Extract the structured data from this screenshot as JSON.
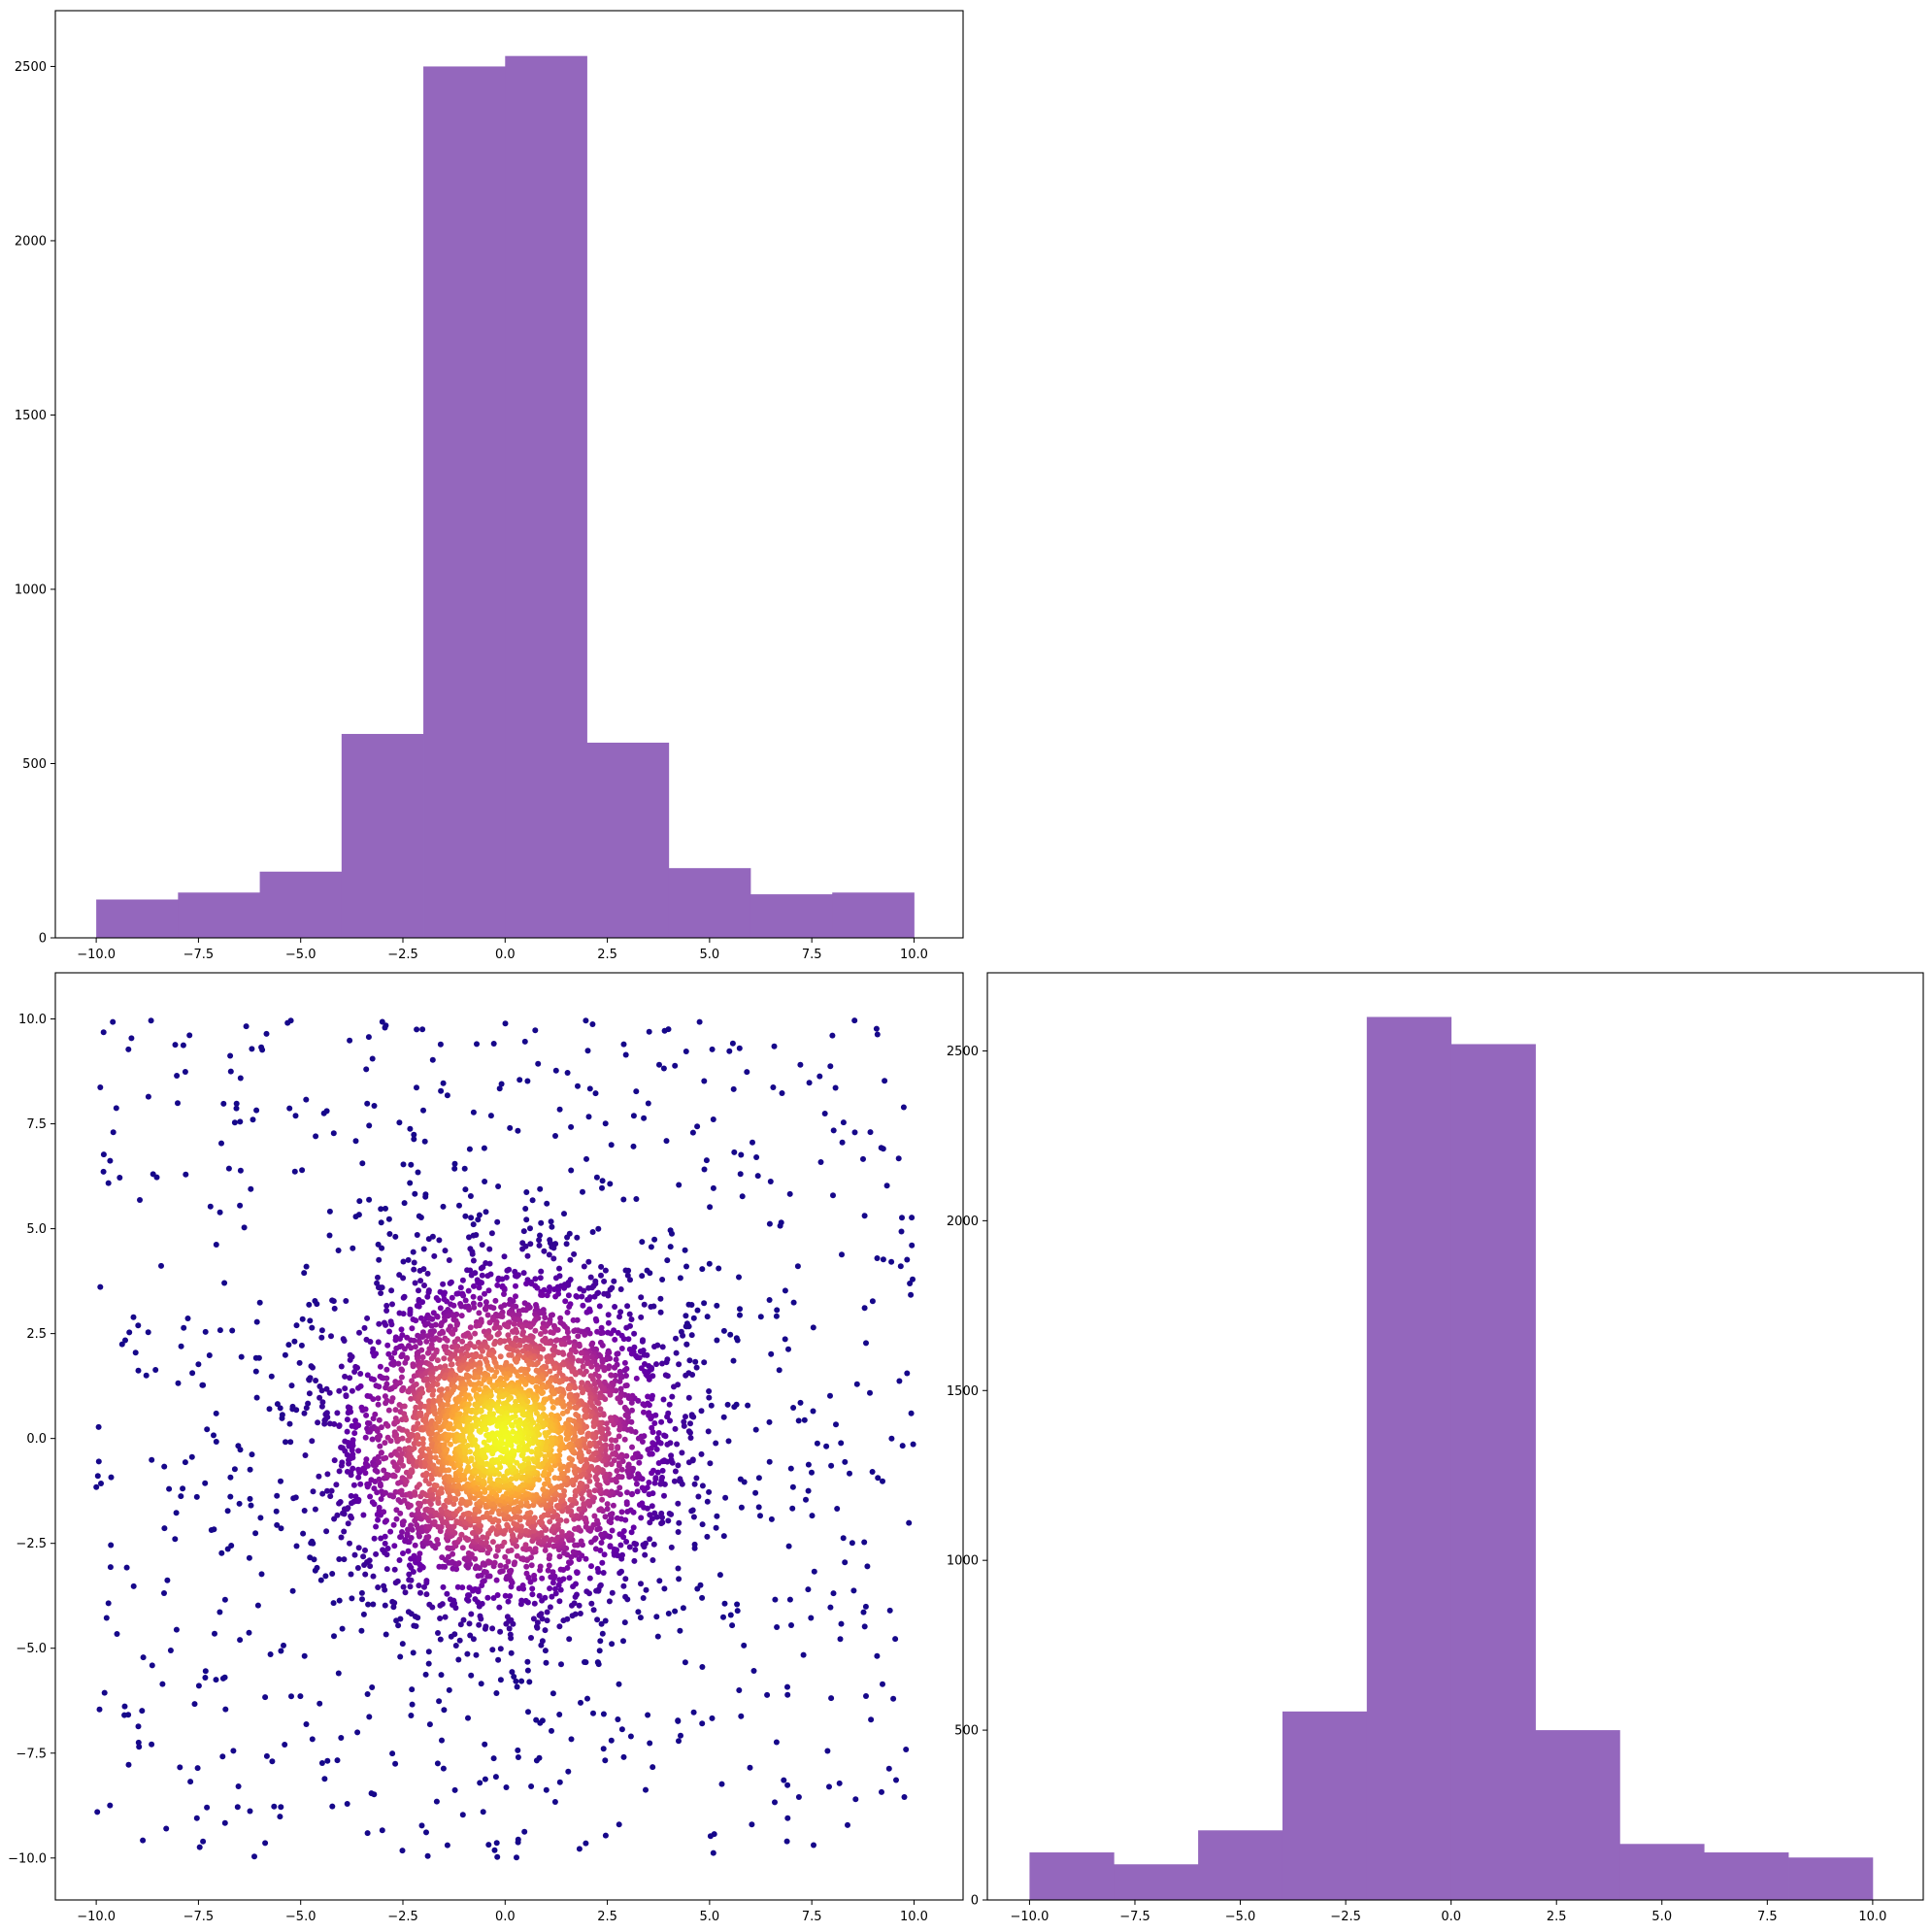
{
  "colors": {
    "bar": "#9467bd",
    "axis": "#000000",
    "scatter_colormap": "plasma",
    "scatter_colormap_stops": [
      "#0d0887",
      "#6a00a8",
      "#b12a90",
      "#e16462",
      "#fca636",
      "#f0f921"
    ]
  },
  "chart_data": [
    {
      "id": "hist-x",
      "type": "bar",
      "title": "",
      "xlabel": "",
      "ylabel": "",
      "bin_edges": [
        -10,
        -8,
        -6,
        -4,
        -2,
        0,
        2,
        4,
        6,
        8,
        10
      ],
      "values": [
        110,
        130,
        190,
        585,
        2500,
        2530,
        560,
        200,
        125,
        130
      ],
      "xlim": [
        -11,
        11.2
      ],
      "ylim": [
        0,
        2660
      ],
      "xticks": [
        -10,
        -7.5,
        -5,
        -2.5,
        0,
        2.5,
        5,
        7.5,
        10
      ],
      "xtick_labels": [
        "−10.0",
        "−7.5",
        "−5.0",
        "−2.5",
        "0.0",
        "2.5",
        "5.0",
        "7.5",
        "10.0"
      ],
      "yticks": [
        0,
        500,
        1000,
        1500,
        2000,
        2500
      ],
      "ytick_labels": [
        "0",
        "500",
        "1000",
        "1500",
        "2000",
        "2500"
      ],
      "grid": false
    },
    {
      "id": "scatter-xy",
      "type": "scatter",
      "title": "",
      "xlabel": "",
      "ylabel": "",
      "description": "≈5000 points: a Gaussian cluster centred at (0, 0) (sd ≈ 2) plus a uniform background over [-10, 10] × [-10, 10]; points coloured by local density with the plasma colormap (dark purple sparse → yellow dense).",
      "n_points": 5000,
      "center": [
        0,
        0
      ],
      "cluster_sd": 2,
      "uniform_range": [
        -10,
        10
      ],
      "xlim": [
        -11,
        11.2
      ],
      "ylim": [
        -11,
        11.1
      ],
      "xticks": [
        -10,
        -7.5,
        -5,
        -2.5,
        0,
        2.5,
        5,
        7.5,
        10
      ],
      "xtick_labels": [
        "−10.0",
        "−7.5",
        "−5.0",
        "−2.5",
        "0.0",
        "2.5",
        "5.0",
        "7.5",
        "10.0"
      ],
      "yticks": [
        -10,
        -7.5,
        -5,
        -2.5,
        0,
        2.5,
        5,
        7.5,
        10
      ],
      "ytick_labels": [
        "−10.0",
        "−7.5",
        "−5.0",
        "−2.5",
        "0.0",
        "2.5",
        "5.0",
        "7.5",
        "10.0"
      ],
      "grid": false
    },
    {
      "id": "hist-y",
      "type": "bar",
      "title": "",
      "xlabel": "",
      "ylabel": "",
      "bin_edges": [
        -10,
        -8,
        -6,
        -4,
        -2,
        0,
        2,
        4,
        6,
        8,
        10
      ],
      "values": [
        140,
        105,
        205,
        555,
        2600,
        2520,
        500,
        165,
        140,
        125
      ],
      "xlim": [
        -11,
        11.2
      ],
      "ylim": [
        0,
        2730
      ],
      "xticks": [
        -10,
        -7.5,
        -5,
        -2.5,
        0,
        2.5,
        5,
        7.5,
        10
      ],
      "xtick_labels": [
        "−10.0",
        "−7.5",
        "−5.0",
        "−2.5",
        "0.0",
        "2.5",
        "5.0",
        "7.5",
        "10.0"
      ],
      "yticks": [
        0,
        500,
        1000,
        1500,
        2000,
        2500
      ],
      "ytick_labels": [
        "0",
        "500",
        "1000",
        "1500",
        "2000",
        "2500"
      ],
      "grid": false
    }
  ]
}
